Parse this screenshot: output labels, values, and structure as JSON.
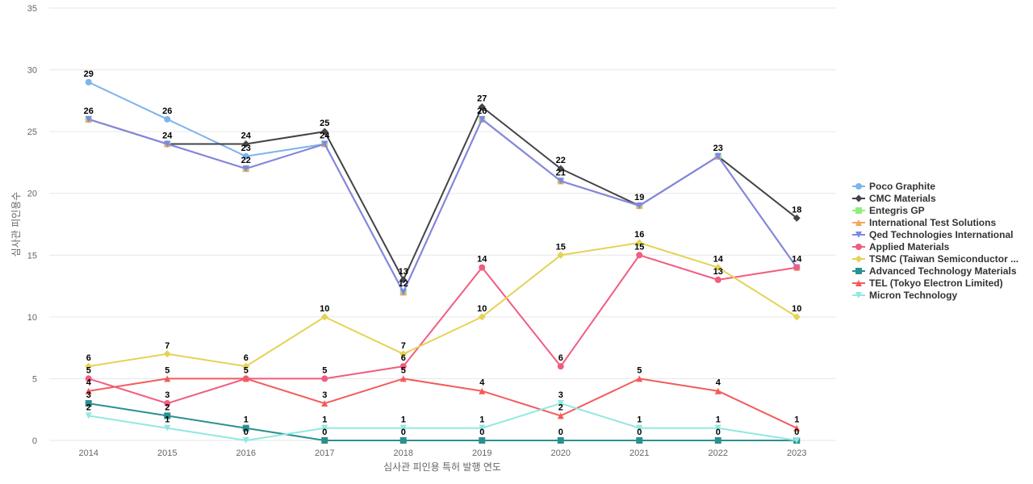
{
  "chart_data": {
    "type": "line",
    "title": "",
    "xlabel": "심사관 피인용 특허 발행 연도",
    "ylabel": "심사관 피인용수",
    "ylim": [
      0,
      35
    ],
    "yticks": [
      0,
      5,
      10,
      15,
      20,
      25,
      30,
      35
    ],
    "grid": true,
    "legend_position": "right",
    "categories": [
      "2014",
      "2015",
      "2016",
      "2017",
      "2018",
      "2019",
      "2020",
      "2021",
      "2022",
      "2023"
    ],
    "series": [
      {
        "name": "Poco Graphite",
        "color": "#7cb5ec",
        "marker": "circle",
        "values": [
          29,
          26,
          23,
          24,
          12,
          26,
          21,
          19,
          23,
          14
        ]
      },
      {
        "name": "CMC Materials",
        "color": "#434348",
        "marker": "diamond",
        "values": [
          26,
          24,
          24,
          25,
          13,
          27,
          22,
          19,
          23,
          18
        ]
      },
      {
        "name": "Entegris GP",
        "color": "#90ed7d",
        "marker": "square",
        "values": [
          26,
          24,
          22,
          24,
          12,
          26,
          21,
          19,
          23,
          14
        ]
      },
      {
        "name": "International Test Solutions",
        "color": "#f7a35c",
        "marker": "triangle",
        "values": [
          26,
          24,
          22,
          24,
          12,
          26,
          21,
          19,
          23,
          14
        ]
      },
      {
        "name": "Qed Technologies International",
        "color": "#8085e9",
        "marker": "triangle-down",
        "values": [
          26,
          24,
          22,
          24,
          12,
          26,
          21,
          19,
          23,
          14
        ]
      },
      {
        "name": "Applied Materials",
        "color": "#f15c80",
        "marker": "circle",
        "values": [
          5,
          3,
          5,
          5,
          6,
          14,
          6,
          15,
          13,
          14
        ]
      },
      {
        "name": "TSMC (Taiwan Semiconductor ...",
        "color": "#e4d354",
        "marker": "diamond",
        "values": [
          6,
          7,
          6,
          10,
          7,
          10,
          15,
          16,
          14,
          10
        ]
      },
      {
        "name": "Advanced Technology Materials",
        "color": "#2b908f",
        "marker": "square",
        "values": [
          3,
          2,
          1,
          0,
          0,
          0,
          0,
          0,
          0,
          0
        ]
      },
      {
        "name": "TEL (Tokyo Electron Limited)",
        "color": "#f45b5b",
        "marker": "triangle",
        "values": [
          4,
          5,
          5,
          3,
          5,
          4,
          2,
          5,
          4,
          1
        ]
      },
      {
        "name": "Micron Technology",
        "color": "#91e8e1",
        "marker": "triangle-down",
        "values": [
          2,
          1,
          0,
          1,
          1,
          1,
          3,
          1,
          1,
          0
        ]
      }
    ]
  }
}
